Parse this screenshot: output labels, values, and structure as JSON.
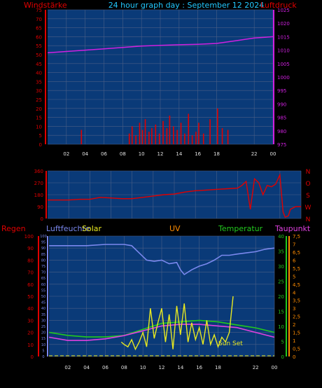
{
  "header": {
    "left_label": "Windstärke",
    "center_title": "24 hour graph day : September 12 2024",
    "right_label": "Luftdruck"
  },
  "bottom_header": {
    "regen": "Regen",
    "luftfeuchte": "Luftfeuchte",
    "solar": "Solar",
    "uv": "UV",
    "temperatur": "Temperatur",
    "taupunkt": "Taupunkt"
  },
  "colors": {
    "background": "#000000",
    "plot_bg": "#0a3a78",
    "grid": "#4a5f86",
    "wind": "#e00000",
    "gust": "#ff2020",
    "pressure": "#d020e0",
    "direction": "#e00000",
    "humidity": "#7a88ee",
    "solar": "#e8e820",
    "uv": "#ff8c00",
    "temperature": "#22c81e",
    "dewpoint": "#e040e0",
    "header_title": "#22c8ff",
    "axis_left_red": "#e00000",
    "axis_right_magenta": "#d020e0"
  },
  "x_ticks": [
    "02",
    "04",
    "06",
    "08",
    "10",
    "12",
    "14",
    "16",
    "18",
    "22",
    "00"
  ],
  "x_tick_hours": [
    2,
    4,
    6,
    8,
    10,
    12,
    14,
    16,
    18,
    22,
    24
  ],
  "annotation": "Sun Set",
  "chart_data": [
    {
      "type": "line",
      "name": "wind-pressure",
      "left_axis": {
        "label": "Windstärke",
        "ylim": [
          0,
          75
        ],
        "ticks": [
          "0",
          "5",
          "10",
          "15",
          "20",
          "25",
          "30",
          "35",
          "40",
          "45",
          "50",
          "55",
          "60",
          "65",
          "70",
          "75"
        ]
      },
      "right_axis": {
        "label": "Luftdruck",
        "ylim": [
          975,
          1025
        ],
        "ticks": [
          "975",
          "980",
          "985",
          "990",
          "995",
          "1000",
          "1005",
          "1010",
          "1015",
          "1020",
          "1025"
        ]
      },
      "series": [
        {
          "name": "Luftdruck",
          "axis": "right",
          "x": [
            0,
            2,
            4,
            6,
            8,
            10,
            12,
            14,
            16,
            18,
            20,
            22,
            24
          ],
          "values": [
            1009,
            1009.5,
            1010,
            1010.5,
            1011,
            1011.5,
            1011.8,
            1012,
            1012.2,
            1012.5,
            1013.5,
            1014.5,
            1015
          ]
        },
        {
          "name": "Windstärke",
          "axis": "left",
          "type": "bar",
          "x": [
            3.6,
            8.7,
            9.0,
            9.4,
            9.8,
            10.1,
            10.4,
            10.8,
            11.1,
            11.5,
            11.9,
            12.3,
            12.7,
            13.0,
            13.4,
            13.8,
            14.2,
            14.6,
            15.0,
            15.4,
            15.8,
            16.1,
            16.6,
            17.3,
            18.1,
            18.6,
            19.2
          ],
          "values": [
            8,
            6,
            10,
            5,
            12,
            8,
            14,
            7,
            9,
            11,
            6,
            13,
            9,
            16,
            10,
            8,
            12,
            6,
            17,
            5,
            7,
            12,
            6,
            14,
            20,
            9,
            8
          ]
        }
      ]
    },
    {
      "type": "line",
      "name": "wind-direction",
      "left_axis": {
        "ylim": [
          0,
          360
        ],
        "ticks": [
          "0",
          "90",
          "180",
          "270",
          "360"
        ]
      },
      "right_axis": {
        "labels": [
          "N",
          "W",
          "S",
          "O",
          "N"
        ]
      },
      "series": [
        {
          "name": "Windrichtung",
          "x": [
            0,
            1.5,
            2,
            3,
            4,
            5,
            6,
            7,
            8,
            9,
            10,
            11,
            12,
            13,
            14,
            15,
            16,
            17,
            18,
            18.4,
            18.8,
            19.2,
            19.6,
            20,
            20.4,
            20.8,
            21.2,
            21.6,
            22,
            22.3,
            22.5,
            22.8,
            23,
            23.5,
            24
          ],
          "values": [
            140,
            140,
            140,
            145,
            145,
            160,
            155,
            150,
            150,
            160,
            170,
            180,
            185,
            200,
            210,
            215,
            220,
            225,
            230,
            250,
            280,
            70,
            300,
            270,
            180,
            250,
            240,
            260,
            330,
            50,
            10,
            20,
            70,
            90,
            90
          ]
        }
      ]
    },
    {
      "type": "line",
      "name": "weather-multi",
      "left_axis_regen": {
        "label": "Regen",
        "ylim": [
          0,
          100
        ],
        "ticks": [
          "0",
          "10",
          "20",
          "30",
          "40",
          "50",
          "60",
          "70",
          "80",
          "90",
          "100"
        ]
      },
      "left_axis_humidity": {
        "label": "Luftfeuchte",
        "ylim": [
          0,
          100
        ],
        "ticks": [
          "0",
          "5",
          "10",
          "15",
          "20",
          "25",
          "30",
          "35",
          "40",
          "45",
          "50",
          "55",
          "60",
          "65",
          "70",
          "75",
          "80",
          "85",
          "90",
          "95",
          "100"
        ]
      },
      "right_axis_temperature": {
        "label": "Temperatur",
        "ylim": [
          0,
          40
        ],
        "ticks": [
          "0",
          "5",
          "10",
          "15",
          "20",
          "25",
          "30",
          "35",
          "40"
        ]
      },
      "right_axis_dewpoint": {
        "label": "Taupunkt",
        "ylim": [
          0,
          7.5
        ],
        "ticks": [
          "0",
          "0,5",
          "1",
          "1,5",
          "2",
          "2,5",
          "3",
          "3,5",
          "4",
          "4,5",
          "5",
          "5,5",
          "6",
          "6,5",
          "7",
          "7,5"
        ]
      },
      "series": [
        {
          "name": "Luftfeuchte",
          "x": [
            0,
            2,
            4,
            6,
            8,
            8.8,
            9.6,
            10.4,
            11.2,
            12.0,
            12.8,
            13.6,
            14.0,
            14.4,
            15.2,
            16.0,
            16.8,
            17.6,
            18.4,
            19.2,
            20.0,
            21.0,
            22.0,
            23.0,
            24.0
          ],
          "values": [
            92,
            92,
            92,
            93,
            93,
            92,
            86,
            80,
            79,
            80,
            77,
            78,
            72,
            68,
            72,
            75,
            77,
            80,
            84,
            84,
            85,
            86,
            87,
            89,
            90
          ]
        },
        {
          "name": "Temperatur",
          "x": [
            0,
            2,
            4,
            6,
            8,
            10,
            12,
            14,
            16,
            18,
            20,
            22,
            24
          ],
          "values": [
            8,
            7,
            6.5,
            6.5,
            7,
            9,
            11,
            11.5,
            12,
            11.5,
            10.5,
            9.5,
            8
          ]
        },
        {
          "name": "Taupunkt",
          "x": [
            0,
            2,
            4,
            6,
            8,
            10,
            12,
            14,
            16,
            18,
            20,
            22,
            24
          ],
          "values": [
            1.2,
            1.0,
            1.0,
            1.1,
            1.3,
            1.6,
            1.9,
            2.0,
            2.0,
            1.9,
            1.8,
            1.5,
            1.2
          ]
        },
        {
          "name": "Solar",
          "x": [
            7.7,
            8.0,
            8.4,
            8.8,
            9.2,
            9.6,
            10.0,
            10.4,
            10.8,
            11.2,
            11.6,
            12.0,
            12.4,
            12.8,
            13.2,
            13.6,
            14.0,
            14.4,
            14.8,
            15.2,
            15.6,
            16.0,
            16.4,
            16.8,
            17.2,
            17.6,
            18.0,
            18.4,
            18.8,
            19.2,
            19.6
          ],
          "values": [
            12,
            10,
            8,
            14,
            6,
            12,
            20,
            8,
            40,
            15,
            28,
            40,
            12,
            35,
            6,
            42,
            18,
            44,
            12,
            28,
            14,
            24,
            10,
            30,
            10,
            18,
            8,
            16,
            12,
            20,
            50
          ]
        }
      ]
    }
  ]
}
